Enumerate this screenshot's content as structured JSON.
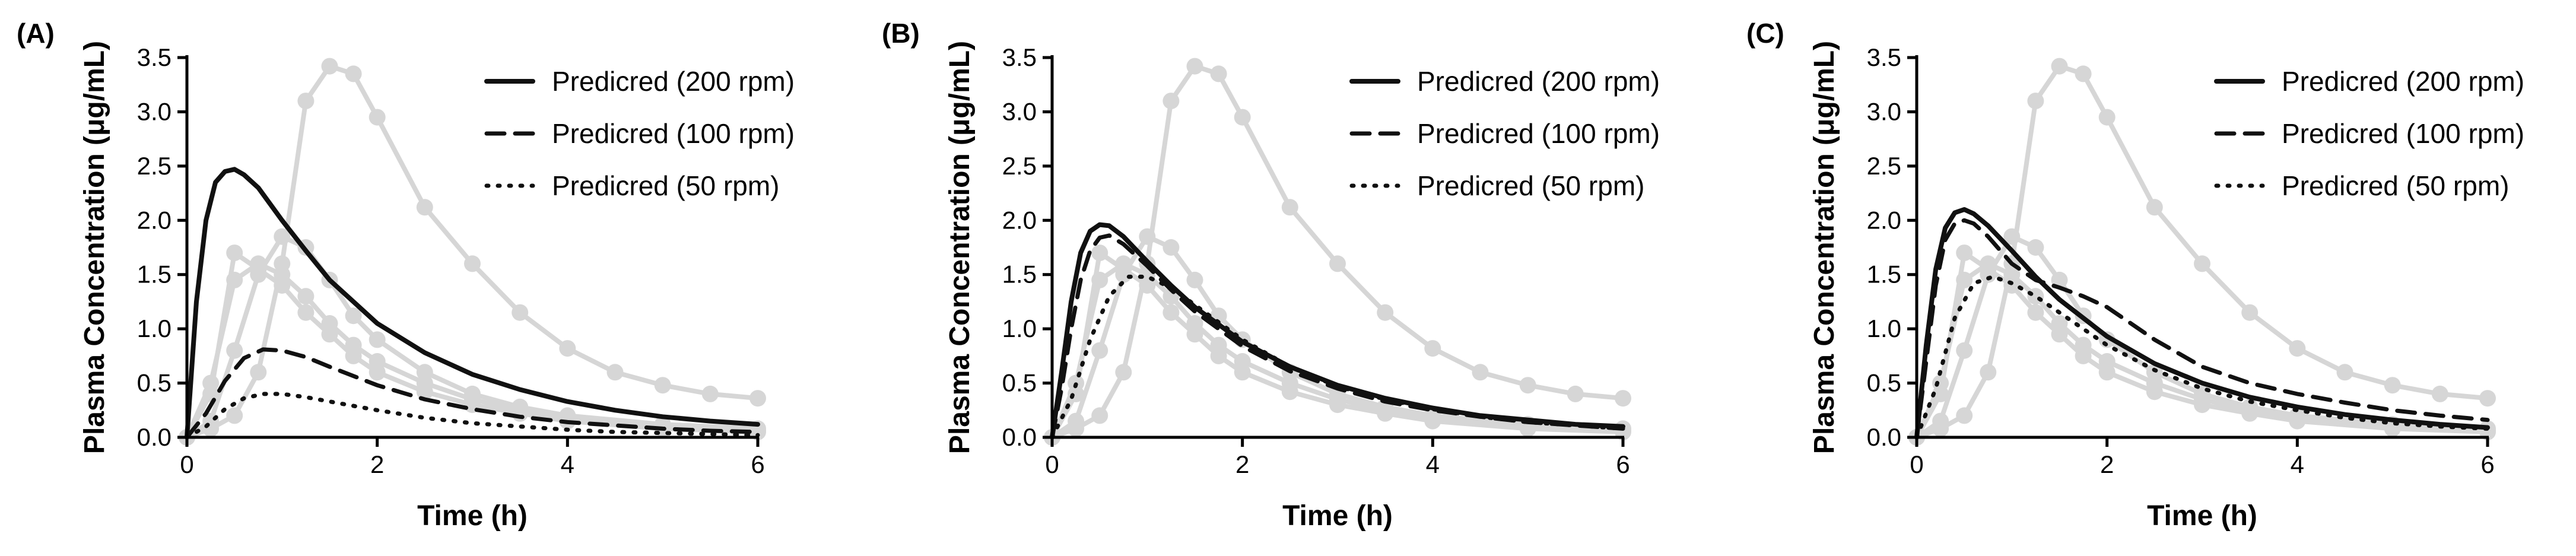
{
  "figure": {
    "panels": [
      "(A)",
      "(B)",
      "(C)"
    ]
  },
  "chart_data": [
    {
      "type": "line",
      "panel_label": "(A)",
      "xlabel": "Time (h)",
      "ylabel": "Plasma Concentration (μg/mL)",
      "xlim": [
        0,
        6
      ],
      "ylim": [
        0,
        3.5
      ],
      "xticks": [
        0,
        2,
        4,
        6
      ],
      "yticks": [
        "0.0",
        "0.5",
        "1.0",
        "1.5",
        "2.0",
        "2.5",
        "3.0",
        "3.5"
      ],
      "legend_position": "top-right",
      "series": [
        {
          "name": "Predicred (200 rpm)",
          "style": "solid",
          "color": "#111111",
          "t": [
            0,
            0.1,
            0.2,
            0.3,
            0.4,
            0.5,
            0.6,
            0.75,
            1.0,
            1.25,
            1.5,
            2.0,
            2.5,
            3.0,
            3.5,
            4.0,
            4.5,
            5.0,
            5.5,
            6.0
          ],
          "c": [
            0,
            1.25,
            2.0,
            2.35,
            2.45,
            2.47,
            2.42,
            2.3,
            2.0,
            1.72,
            1.45,
            1.05,
            0.78,
            0.58,
            0.44,
            0.33,
            0.25,
            0.19,
            0.15,
            0.12
          ]
        },
        {
          "name": "Predicred (100 rpm)",
          "style": "dashed",
          "color": "#111111",
          "t": [
            0,
            0.2,
            0.4,
            0.6,
            0.8,
            1.0,
            1.25,
            1.5,
            2.0,
            2.5,
            3.0,
            3.5,
            4.0,
            4.5,
            5.0,
            5.5,
            6.0
          ],
          "c": [
            0,
            0.22,
            0.52,
            0.73,
            0.81,
            0.8,
            0.74,
            0.65,
            0.48,
            0.35,
            0.26,
            0.19,
            0.14,
            0.11,
            0.08,
            0.06,
            0.05
          ]
        },
        {
          "name": "Predicred (50 rpm)",
          "style": "dotted",
          "color": "#111111",
          "t": [
            0,
            0.2,
            0.4,
            0.6,
            0.8,
            1.0,
            1.25,
            1.5,
            2.0,
            2.5,
            3.0,
            3.5,
            4.0,
            4.5,
            5.0,
            5.5,
            6.0
          ],
          "c": [
            0,
            0.1,
            0.26,
            0.36,
            0.4,
            0.4,
            0.37,
            0.33,
            0.25,
            0.18,
            0.13,
            0.1,
            0.07,
            0.05,
            0.04,
            0.03,
            0.02
          ]
        }
      ],
      "observed": [
        {
          "name": "observed-1",
          "t": [
            0,
            0.25,
            0.5,
            0.75,
            1.0,
            1.25,
            1.5,
            1.75,
            2.0,
            2.5,
            3.0,
            3.5,
            4.0,
            5.0,
            6.0
          ],
          "c": [
            0,
            0.15,
            0.8,
            1.5,
            1.85,
            1.75,
            1.45,
            1.12,
            0.9,
            0.6,
            0.4,
            0.28,
            0.2,
            0.12,
            0.08
          ]
        },
        {
          "name": "observed-2",
          "t": [
            0,
            0.25,
            0.5,
            0.75,
            1.0,
            1.25,
            1.5,
            1.75,
            2.0,
            2.5,
            3.0,
            3.5,
            4.0,
            5.0,
            6.0
          ],
          "c": [
            0,
            0.5,
            1.45,
            1.6,
            1.5,
            1.3,
            1.05,
            0.85,
            0.7,
            0.5,
            0.35,
            0.25,
            0.18,
            0.1,
            0.06
          ]
        },
        {
          "name": "observed-3",
          "t": [
            0,
            0.25,
            0.5,
            0.75,
            1.0,
            1.25,
            1.5,
            1.75,
            2.0,
            2.5,
            3.0,
            3.5,
            4.0,
            5.0,
            6.0
          ],
          "c": [
            0,
            0.4,
            1.7,
            1.55,
            1.4,
            1.15,
            0.95,
            0.75,
            0.6,
            0.42,
            0.3,
            0.22,
            0.15,
            0.08,
            0.05
          ]
        },
        {
          "name": "observed-4",
          "t": [
            0,
            0.25,
            0.5,
            0.75,
            1.0,
            1.25,
            1.5,
            1.75,
            2.0,
            2.5,
            3.0,
            3.5,
            4.0,
            4.5,
            5.0,
            5.5,
            6.0
          ],
          "c": [
            0,
            0.08,
            0.2,
            0.6,
            1.6,
            3.1,
            3.42,
            3.35,
            2.95,
            2.12,
            1.6,
            1.15,
            0.82,
            0.6,
            0.48,
            0.4,
            0.36
          ]
        }
      ]
    },
    {
      "type": "line",
      "panel_label": "(B)",
      "xlabel": "Time (h)",
      "ylabel": "Plasma Concentration (μg/mL)",
      "xlim": [
        0,
        6
      ],
      "ylim": [
        0,
        3.5
      ],
      "xticks": [
        0,
        2,
        4,
        6
      ],
      "yticks": [
        "0.0",
        "0.5",
        "1.0",
        "1.5",
        "2.0",
        "2.5",
        "3.0",
        "3.5"
      ],
      "legend_position": "top-right",
      "series": [
        {
          "name": "Predicred (200 rpm)",
          "style": "solid",
          "color": "#111111",
          "t": [
            0,
            0.1,
            0.2,
            0.3,
            0.4,
            0.5,
            0.6,
            0.75,
            1.0,
            1.25,
            1.5,
            2.0,
            2.5,
            3.0,
            3.5,
            4.0,
            4.5,
            5.0,
            5.5,
            6.0
          ],
          "c": [
            0,
            0.6,
            1.25,
            1.7,
            1.9,
            1.96,
            1.95,
            1.85,
            1.62,
            1.4,
            1.2,
            0.88,
            0.65,
            0.48,
            0.36,
            0.27,
            0.2,
            0.16,
            0.12,
            0.1
          ]
        },
        {
          "name": "Predicred (100 rpm)",
          "style": "dashed",
          "color": "#111111",
          "t": [
            0,
            0.1,
            0.2,
            0.3,
            0.4,
            0.5,
            0.6,
            0.75,
            1.0,
            1.25,
            1.5,
            2.0,
            2.5,
            3.0,
            3.5,
            4.0,
            4.5,
            5.0,
            5.5,
            6.0
          ],
          "c": [
            0,
            0.45,
            1.0,
            1.45,
            1.72,
            1.84,
            1.86,
            1.78,
            1.58,
            1.36,
            1.16,
            0.84,
            0.61,
            0.45,
            0.33,
            0.25,
            0.19,
            0.14,
            0.11,
            0.08
          ]
        },
        {
          "name": "Predicred (50 rpm)",
          "style": "dotted",
          "color": "#111111",
          "t": [
            0,
            0.2,
            0.4,
            0.6,
            0.8,
            1.0,
            1.25,
            1.5,
            2.0,
            2.5,
            3.0,
            3.5,
            4.0,
            4.5,
            5.0,
            5.5,
            6.0
          ],
          "c": [
            0,
            0.35,
            0.9,
            1.3,
            1.48,
            1.48,
            1.38,
            1.22,
            0.9,
            0.65,
            0.47,
            0.35,
            0.26,
            0.19,
            0.14,
            0.11,
            0.08
          ]
        }
      ],
      "observed": [
        {
          "name": "observed-1",
          "t": [
            0,
            0.25,
            0.5,
            0.75,
            1.0,
            1.25,
            1.5,
            1.75,
            2.0,
            2.5,
            3.0,
            3.5,
            4.0,
            5.0,
            6.0
          ],
          "c": [
            0,
            0.15,
            0.8,
            1.5,
            1.85,
            1.75,
            1.45,
            1.12,
            0.9,
            0.6,
            0.4,
            0.28,
            0.2,
            0.12,
            0.08
          ]
        },
        {
          "name": "observed-2",
          "t": [
            0,
            0.25,
            0.5,
            0.75,
            1.0,
            1.25,
            1.5,
            1.75,
            2.0,
            2.5,
            3.0,
            3.5,
            4.0,
            5.0,
            6.0
          ],
          "c": [
            0,
            0.5,
            1.45,
            1.6,
            1.5,
            1.3,
            1.05,
            0.85,
            0.7,
            0.5,
            0.35,
            0.25,
            0.18,
            0.1,
            0.06
          ]
        },
        {
          "name": "observed-3",
          "t": [
            0,
            0.25,
            0.5,
            0.75,
            1.0,
            1.25,
            1.5,
            1.75,
            2.0,
            2.5,
            3.0,
            3.5,
            4.0,
            5.0,
            6.0
          ],
          "c": [
            0,
            0.4,
            1.7,
            1.55,
            1.4,
            1.15,
            0.95,
            0.75,
            0.6,
            0.42,
            0.3,
            0.22,
            0.15,
            0.08,
            0.05
          ]
        },
        {
          "name": "observed-4",
          "t": [
            0,
            0.25,
            0.5,
            0.75,
            1.0,
            1.25,
            1.5,
            1.75,
            2.0,
            2.5,
            3.0,
            3.5,
            4.0,
            4.5,
            5.0,
            5.5,
            6.0
          ],
          "c": [
            0,
            0.08,
            0.2,
            0.6,
            1.6,
            3.1,
            3.42,
            3.35,
            2.95,
            2.12,
            1.6,
            1.15,
            0.82,
            0.6,
            0.48,
            0.4,
            0.36
          ]
        }
      ]
    },
    {
      "type": "line",
      "panel_label": "(C)",
      "xlabel": "Time (h)",
      "ylabel": "Plasma Concentration (μg/mL)",
      "xlim": [
        0,
        6
      ],
      "ylim": [
        0,
        3.5
      ],
      "xticks": [
        0,
        2,
        4,
        6
      ],
      "yticks": [
        "0.0",
        "0.5",
        "1.0",
        "1.5",
        "2.0",
        "2.5",
        "3.0",
        "3.5"
      ],
      "legend_position": "top-right",
      "series": [
        {
          "name": "Predicred (200 rpm)",
          "style": "solid",
          "color": "#111111",
          "t": [
            0,
            0.1,
            0.2,
            0.3,
            0.4,
            0.5,
            0.6,
            0.75,
            1.0,
            1.25,
            1.5,
            2.0,
            2.5,
            3.0,
            3.5,
            4.0,
            4.5,
            5.0,
            5.5,
            6.0
          ],
          "c": [
            0,
            0.85,
            1.55,
            1.93,
            2.07,
            2.1,
            2.06,
            1.95,
            1.72,
            1.48,
            1.27,
            0.93,
            0.68,
            0.5,
            0.37,
            0.28,
            0.21,
            0.16,
            0.12,
            0.09
          ]
        },
        {
          "name": "Predicred (100 rpm)",
          "style": "dashed",
          "color": "#111111",
          "t": [
            0,
            0.1,
            0.2,
            0.3,
            0.4,
            0.5,
            0.6,
            0.75,
            1.0,
            1.25,
            1.5,
            1.75,
            2.0,
            2.25,
            2.5,
            3.0,
            3.5,
            4.0,
            4.5,
            5.0,
            5.5,
            6.0
          ],
          "c": [
            0,
            0.7,
            1.4,
            1.82,
            1.97,
            2.0,
            1.97,
            1.85,
            1.6,
            1.45,
            1.38,
            1.3,
            1.2,
            1.05,
            0.9,
            0.65,
            0.5,
            0.4,
            0.32,
            0.25,
            0.2,
            0.16
          ]
        },
        {
          "name": "Predicred (50 rpm)",
          "style": "dotted",
          "color": "#111111",
          "t": [
            0,
            0.2,
            0.4,
            0.6,
            0.8,
            1.0,
            1.25,
            1.5,
            2.0,
            2.5,
            3.0,
            3.5,
            4.0,
            4.5,
            5.0,
            5.5,
            6.0
          ],
          "c": [
            0,
            0.45,
            1.1,
            1.42,
            1.48,
            1.42,
            1.3,
            1.15,
            0.85,
            0.62,
            0.45,
            0.33,
            0.25,
            0.18,
            0.13,
            0.1,
            0.08
          ]
        }
      ],
      "observed": [
        {
          "name": "observed-1",
          "t": [
            0,
            0.25,
            0.5,
            0.75,
            1.0,
            1.25,
            1.5,
            1.75,
            2.0,
            2.5,
            3.0,
            3.5,
            4.0,
            5.0,
            6.0
          ],
          "c": [
            0,
            0.15,
            0.8,
            1.5,
            1.85,
            1.75,
            1.45,
            1.12,
            0.9,
            0.6,
            0.4,
            0.28,
            0.2,
            0.12,
            0.08
          ]
        },
        {
          "name": "observed-2",
          "t": [
            0,
            0.25,
            0.5,
            0.75,
            1.0,
            1.25,
            1.5,
            1.75,
            2.0,
            2.5,
            3.0,
            3.5,
            4.0,
            5.0,
            6.0
          ],
          "c": [
            0,
            0.5,
            1.45,
            1.6,
            1.5,
            1.3,
            1.05,
            0.85,
            0.7,
            0.5,
            0.35,
            0.25,
            0.18,
            0.1,
            0.06
          ]
        },
        {
          "name": "observed-3",
          "t": [
            0,
            0.25,
            0.5,
            0.75,
            1.0,
            1.25,
            1.5,
            1.75,
            2.0,
            2.5,
            3.0,
            3.5,
            4.0,
            5.0,
            6.0
          ],
          "c": [
            0,
            0.4,
            1.7,
            1.55,
            1.4,
            1.15,
            0.95,
            0.75,
            0.6,
            0.42,
            0.3,
            0.22,
            0.15,
            0.08,
            0.05
          ]
        },
        {
          "name": "observed-4",
          "t": [
            0,
            0.25,
            0.5,
            0.75,
            1.0,
            1.25,
            1.5,
            1.75,
            2.0,
            2.5,
            3.0,
            3.5,
            4.0,
            4.5,
            5.0,
            5.5,
            6.0
          ],
          "c": [
            0,
            0.08,
            0.2,
            0.6,
            1.6,
            3.1,
            3.42,
            3.35,
            2.95,
            2.12,
            1.6,
            1.15,
            0.82,
            0.6,
            0.48,
            0.4,
            0.36
          ]
        }
      ]
    }
  ],
  "colors": {
    "observed": "#d6d6d6",
    "predicted": "#111111",
    "axis": "#000000"
  }
}
